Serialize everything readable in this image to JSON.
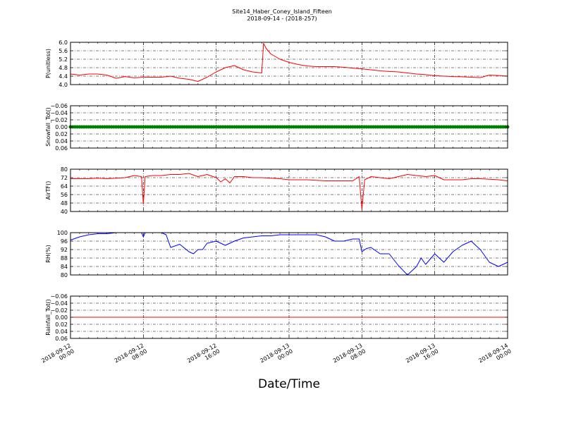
{
  "figure": {
    "title_line1": "Site14_Haber_Coney_Island_Fifteen",
    "title_line2": "2018-09-14 - (2018-257)",
    "xlabel": "Date/Time",
    "x_tick_labels": [
      [
        "2018-09-12",
        "00:00"
      ],
      [
        "2018-09-12",
        "08:00"
      ],
      [
        "2018-09-12",
        "16:00"
      ],
      [
        "2018-09-13",
        "00:00"
      ],
      [
        "2018-09-13",
        "08:00"
      ],
      [
        "2018-09-13",
        "16:00"
      ],
      [
        "2018-09-14",
        "00:00"
      ]
    ]
  },
  "chart_data": [
    {
      "type": "line",
      "ylabel": "P(unitless)",
      "ylim": [
        4.0,
        6.0
      ],
      "yticks": [
        "4.0",
        "4.4",
        "4.8",
        "5.2",
        "5.6",
        "6.0"
      ],
      "grid": true,
      "color": "#ff0000",
      "x_hours": [
        0,
        1,
        2,
        3,
        4,
        5,
        6,
        7,
        8,
        9,
        10,
        11,
        12,
        13,
        14,
        15,
        16,
        17,
        18,
        19,
        20,
        21,
        21.2,
        21.5,
        22,
        23,
        24,
        25,
        26,
        27,
        28,
        29,
        30,
        31,
        32,
        33,
        34,
        35,
        36,
        37,
        38,
        39,
        40,
        41,
        42,
        43,
        44,
        45,
        46,
        47,
        48
      ],
      "values": [
        4.5,
        4.45,
        4.5,
        4.5,
        4.45,
        4.3,
        4.38,
        4.32,
        4.35,
        4.35,
        4.35,
        4.4,
        4.3,
        4.25,
        4.15,
        4.35,
        4.6,
        4.8,
        4.9,
        4.7,
        4.6,
        4.55,
        5.95,
        5.7,
        5.45,
        5.2,
        5.05,
        4.95,
        4.88,
        4.85,
        4.85,
        4.85,
        4.82,
        4.78,
        4.74,
        4.7,
        4.65,
        4.62,
        4.6,
        4.55,
        4.5,
        4.47,
        4.42,
        4.4,
        4.38,
        4.37,
        4.35,
        4.33,
        4.45,
        4.43,
        4.4
      ]
    },
    {
      "type": "scatter",
      "ylabel": "Snowfall_Tot()",
      "ylim": [
        -0.06,
        0.06
      ],
      "yticks": [
        "0.06",
        "0.04",
        "0.02",
        "0.00",
        "−0.02",
        "−0.04",
        "−0.06"
      ],
      "grid": true,
      "color": "#008000",
      "x_hours": [
        0,
        48
      ],
      "values": [
        0.0,
        0.0
      ]
    },
    {
      "type": "line",
      "ylabel": "AirTF()",
      "ylim": [
        40,
        80
      ],
      "yticks": [
        "40",
        "48",
        "56",
        "64",
        "72",
        "80"
      ],
      "grid": true,
      "color": "#ff0000",
      "x_hours": [
        0,
        1,
        2,
        3,
        4,
        5,
        6,
        7,
        7.8,
        8.0,
        8.2,
        9,
        10,
        11,
        12,
        13,
        14,
        15,
        16,
        16.5,
        17,
        17.5,
        18,
        19,
        20,
        21,
        22,
        23,
        24,
        25,
        26,
        27,
        28,
        29,
        30,
        31,
        31.7,
        32.0,
        32.3,
        33,
        34,
        35,
        36,
        37,
        38,
        39,
        40,
        41,
        42,
        43,
        44,
        45,
        46,
        47,
        48
      ],
      "values": [
        71,
        71,
        71,
        71.5,
        71,
        71.5,
        72,
        74,
        73,
        47,
        73,
        74,
        74,
        75,
        75,
        76,
        73,
        75,
        72,
        68,
        71,
        67,
        73,
        73,
        72,
        72,
        71.5,
        71,
        70,
        70,
        70,
        69.5,
        69,
        69,
        69,
        69,
        73,
        42,
        70,
        73,
        72,
        71,
        73,
        75,
        74,
        73,
        74,
        70,
        70,
        70,
        71,
        71,
        70.5,
        70,
        69
      ]
    },
    {
      "type": "line",
      "ylabel": "RH(%)",
      "ylim": [
        80,
        100
      ],
      "yticks": [
        "80",
        "84",
        "88",
        "92",
        "96",
        "100"
      ],
      "grid": true,
      "color": "#0000ff",
      "x_hours": [
        0,
        1,
        2,
        3,
        4,
        5,
        6,
        7,
        7.8,
        8,
        8.2,
        9,
        10,
        10.5,
        11,
        12,
        13,
        13.5,
        14,
        14.5,
        15,
        16,
        17,
        18,
        19,
        20,
        21,
        22,
        23,
        24,
        25,
        26,
        27,
        28,
        29,
        30,
        31,
        31.7,
        32,
        32.5,
        33,
        34,
        35,
        36,
        37,
        38,
        38.5,
        39,
        40,
        41,
        42,
        43,
        44,
        45,
        46,
        47,
        48
      ],
      "values": [
        96.5,
        98,
        99,
        99.5,
        99.5,
        100,
        100,
        100,
        100,
        98,
        100,
        100,
        100,
        99,
        93,
        94.5,
        91,
        90,
        92,
        92,
        95,
        96,
        94,
        96,
        97.5,
        98,
        98.5,
        98.5,
        99,
        99,
        99,
        99,
        99,
        98,
        96,
        96,
        97,
        97,
        91,
        92.5,
        93,
        90,
        90,
        84.5,
        80,
        84,
        88,
        85,
        90,
        86,
        91,
        94,
        96,
        92,
        86,
        84,
        86
      ]
    },
    {
      "type": "line",
      "ylabel": "Rainfall_Tot()",
      "ylim": [
        -0.06,
        0.06
      ],
      "yticks": [
        "0.06",
        "0.04",
        "0.02",
        "0.00",
        "−0.02",
        "−0.04",
        "−0.06"
      ],
      "grid": true,
      "color": "#ff0000",
      "x_hours": [
        0,
        48
      ],
      "values": [
        0.0,
        0.0
      ]
    }
  ]
}
